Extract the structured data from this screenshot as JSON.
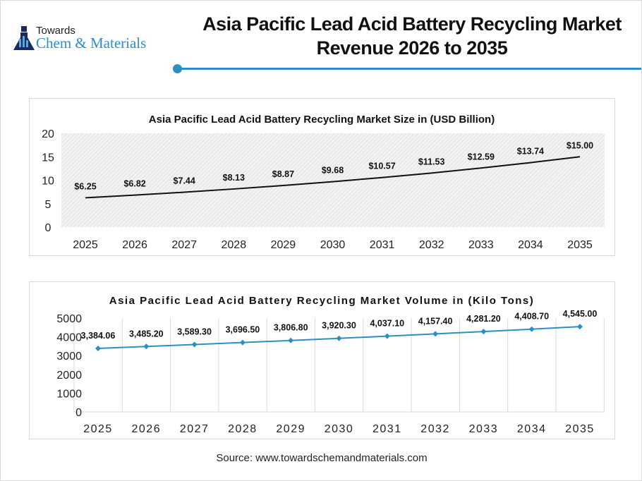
{
  "header": {
    "title_line1": "Asia Pacific Lead Acid Battery Recycling Market",
    "title_line2": "Revenue 2026 to 2035",
    "accent_color": "#2b8fc6"
  },
  "logo": {
    "line1": "Towards",
    "line2": "Chem & Materials"
  },
  "source": "Source: www.towardschemandmaterials.com",
  "chart_data": [
    {
      "type": "line",
      "title": "Asia Pacific Lead Acid Battery Recycling Market Size in (USD Billion)",
      "categories": [
        "2025",
        "2026",
        "2027",
        "2028",
        "2029",
        "2030",
        "2031",
        "2032",
        "2033",
        "2034",
        "2035"
      ],
      "values": [
        6.25,
        6.82,
        7.44,
        8.13,
        8.87,
        9.68,
        10.57,
        11.53,
        12.59,
        13.74,
        15.0
      ],
      "labels": [
        "$6.25",
        "$6.82",
        "$7.44",
        "$8.13",
        "$8.87",
        "$9.68",
        "$10.57",
        "$11.53",
        "$12.59",
        "$13.74",
        "$15.00"
      ],
      "yticks": [
        "0",
        "5",
        "10",
        "15",
        "20"
      ],
      "ylim": [
        0,
        20
      ],
      "line_color": "#111111",
      "background": "hatched gray",
      "grid": false
    },
    {
      "type": "line",
      "title": "Asia Pacific Lead Acid Battery Recycling Market Volume in (Kilo Tons)",
      "categories": [
        "2025",
        "2026",
        "2027",
        "2028",
        "2029",
        "2030",
        "2031",
        "2032",
        "2033",
        "2034",
        "2035"
      ],
      "values": [
        3384.06,
        3485.2,
        3589.3,
        3696.5,
        3806.8,
        3920.3,
        4037.1,
        4157.4,
        4281.2,
        4408.7,
        4545.0
      ],
      "labels": [
        "3,384.06",
        "3,485.20",
        "3,589.30",
        "3,696.50",
        "3,806.80",
        "3,920.30",
        "4,037.10",
        "4,157.40",
        "4,281.20",
        "4,408.70",
        "4,545.00"
      ],
      "yticks": [
        "0",
        "1000",
        "2000",
        "3000",
        "4000",
        "5000"
      ],
      "ylim": [
        0,
        5000
      ],
      "line_color": "#2b8fc6",
      "marker": "diamond",
      "grid": "vertical"
    }
  ]
}
